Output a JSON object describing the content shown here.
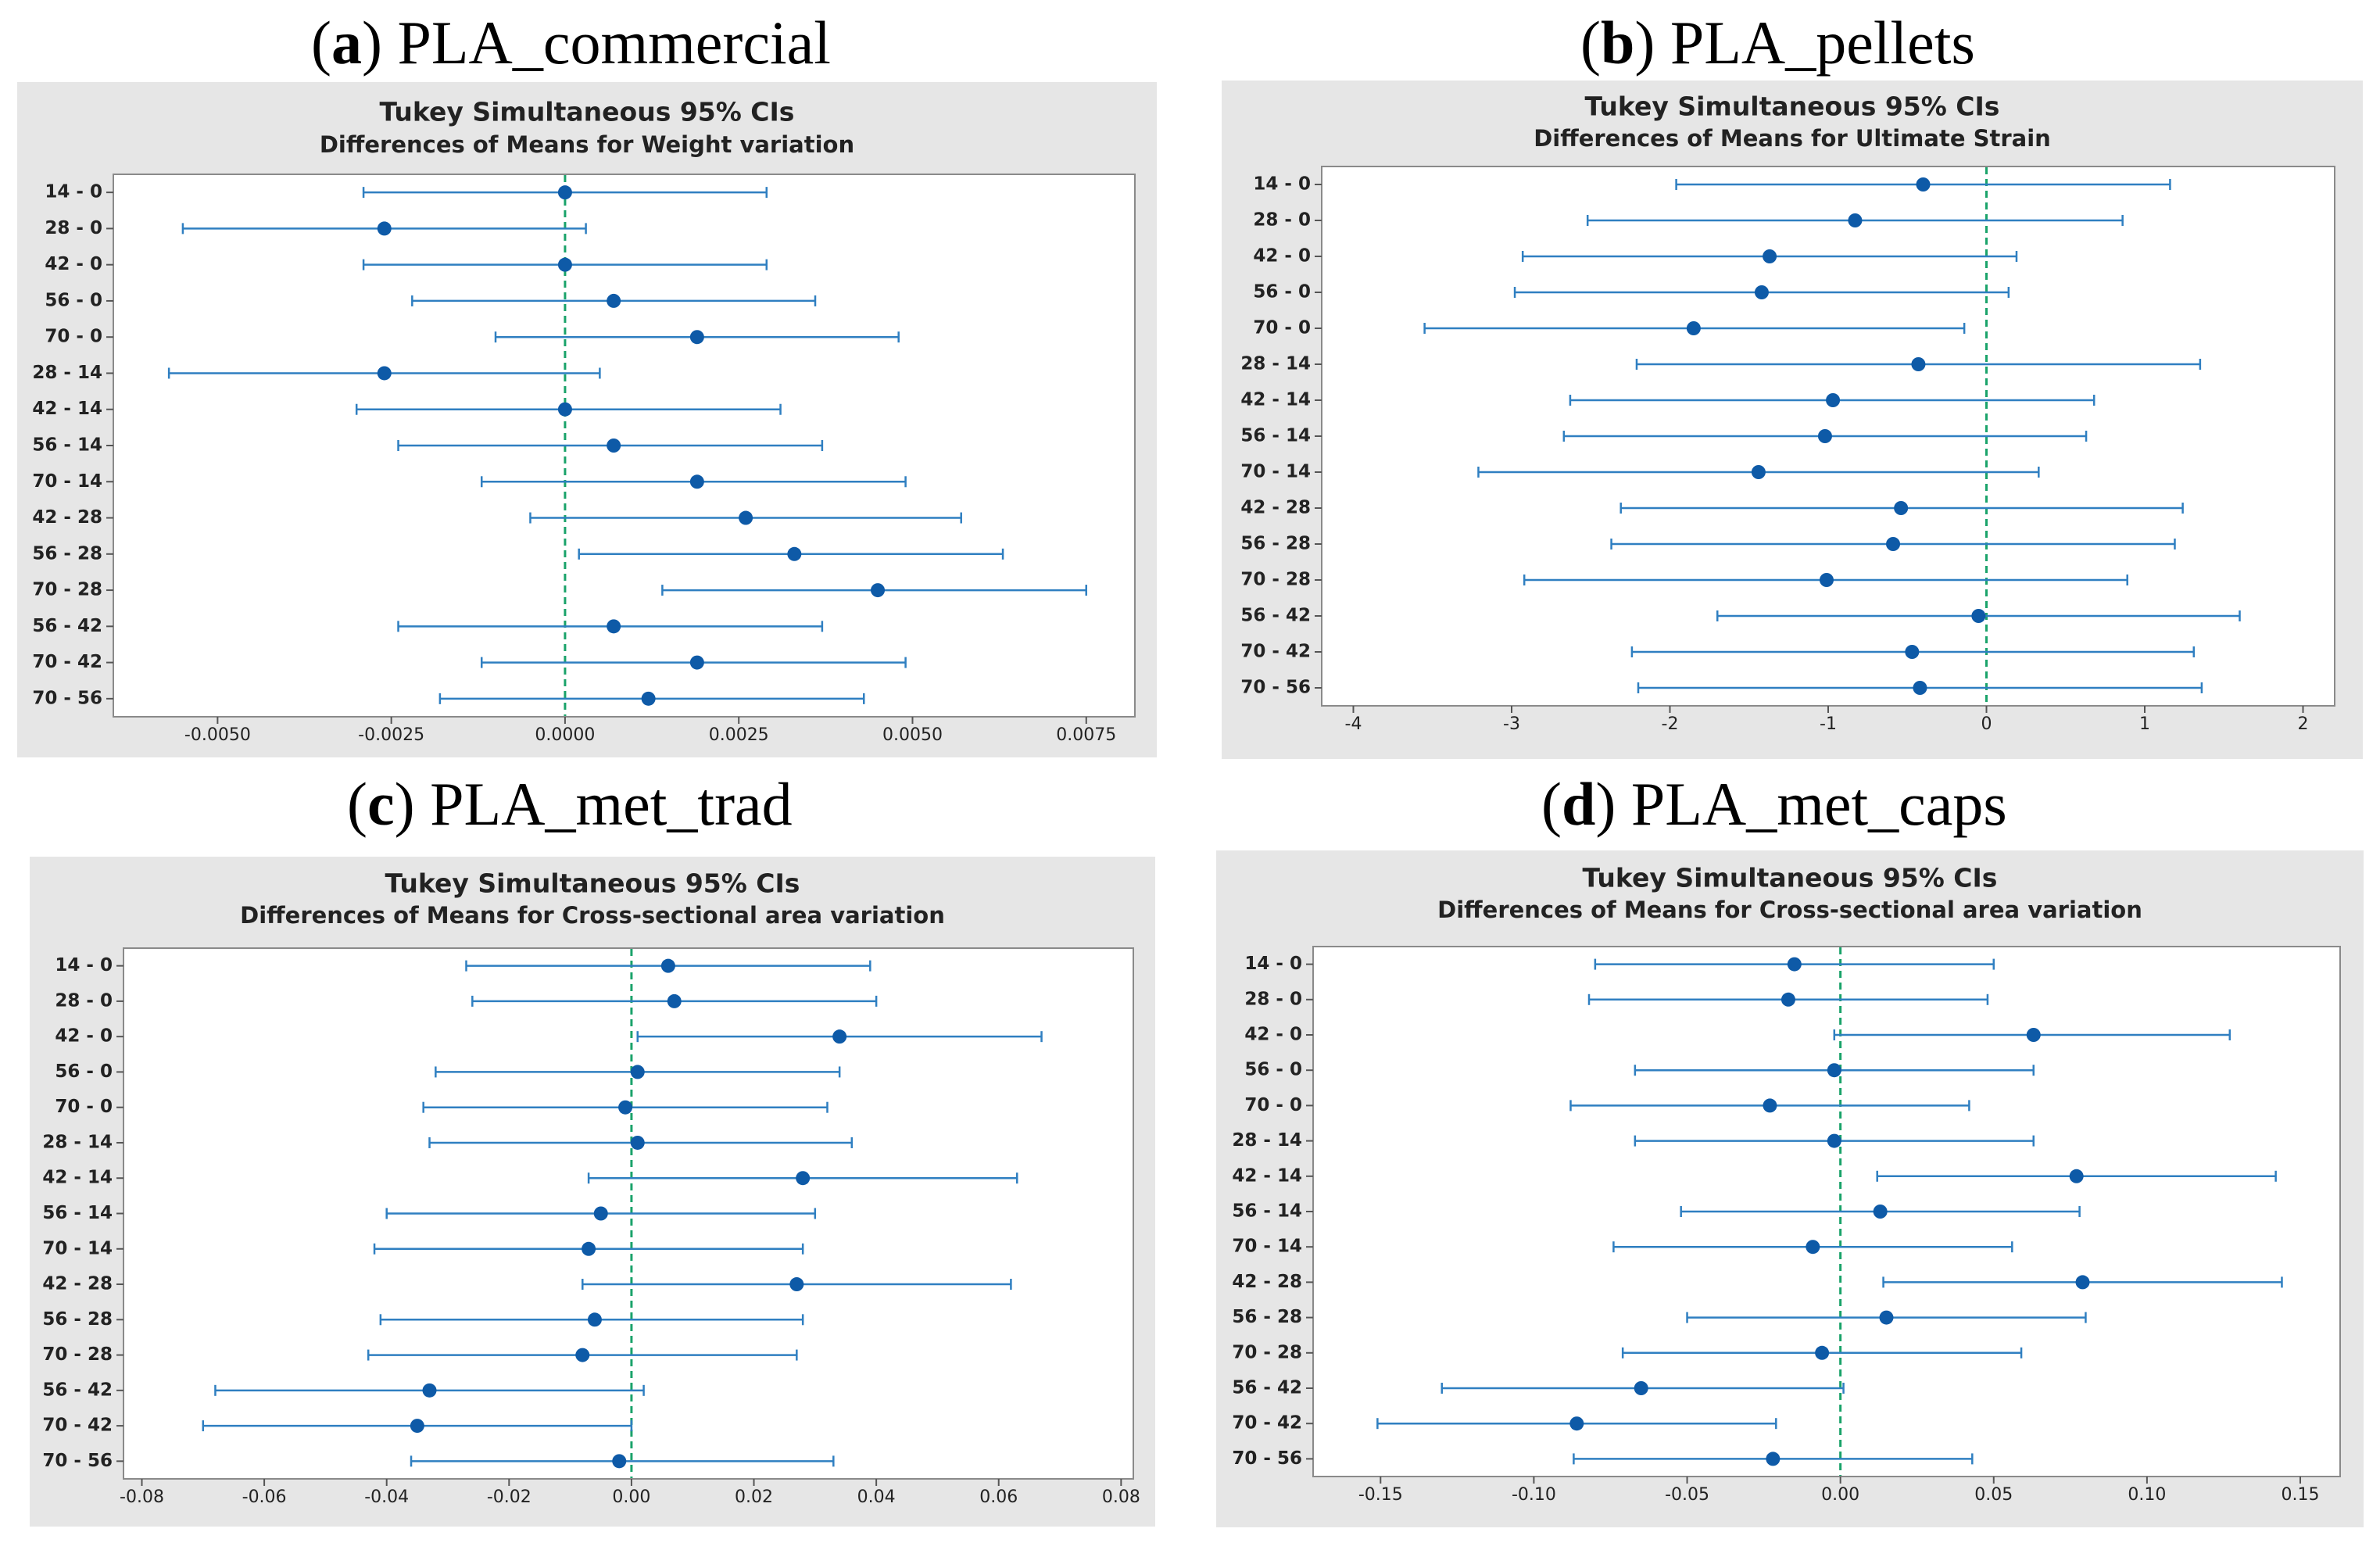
{
  "panels": [
    {
      "letter": "a",
      "open": "(",
      "close": ")",
      "name": "PLA_commercial"
    },
    {
      "letter": "b",
      "open": "(",
      "close": ")",
      "name": "PLA_pellets"
    },
    {
      "letter": "c",
      "open": "(",
      "close": ")",
      "name": "PLA_met_trad"
    },
    {
      "letter": "d",
      "open": "(",
      "close": ")",
      "name": "PLA_met_caps"
    }
  ],
  "chart_data": [
    {
      "type": "scatter",
      "title": "Tukey Simultaneous 95% CIs",
      "subtitle": "Differences of Means for Weight variation",
      "categories": [
        "14 - 0",
        "28 - 0",
        "42 - 0",
        "56 - 0",
        "70 - 0",
        "28 - 14",
        "42 - 14",
        "56 - 14",
        "70 - 14",
        "42 - 28",
        "56 - 28",
        "70 - 28",
        "56 - 42",
        "70 - 42",
        "70 - 56"
      ],
      "means": [
        0.0,
        -0.0026,
        0.0,
        0.0007,
        0.0019,
        -0.0026,
        0.0,
        0.0007,
        0.0019,
        0.0026,
        0.0033,
        0.0045,
        0.0007,
        0.0019,
        0.0012
      ],
      "lower": [
        -0.0029,
        -0.0055,
        -0.0029,
        -0.0022,
        -0.001,
        -0.0057,
        -0.003,
        -0.0024,
        -0.0012,
        -0.0005,
        0.0002,
        0.0014,
        -0.0024,
        -0.0012,
        -0.0018
      ],
      "upper": [
        0.0029,
        0.0003,
        0.0029,
        0.0036,
        0.0048,
        0.0005,
        0.0031,
        0.0037,
        0.0049,
        0.0057,
        0.0063,
        0.0075,
        0.0037,
        0.0049,
        0.0043
      ],
      "xlim": [
        -0.0065,
        0.0082
      ],
      "xticks": [
        -0.005,
        -0.0025,
        0,
        0.0025,
        0.005,
        0.0075
      ],
      "xtick_labels": [
        "-0.0050",
        "-0.0025",
        "0.0000",
        "0.0025",
        "0.0050",
        "0.0075"
      ],
      "reference_line": 0
    },
    {
      "type": "scatter",
      "title": "Tukey Simultaneous 95% CIs",
      "subtitle": "Differences of Means for Ultimate Strain",
      "categories": [
        "14 - 0",
        "28 - 0",
        "42 - 0",
        "56 - 0",
        "70 - 0",
        "28 - 14",
        "42 - 14",
        "56 - 14",
        "70 - 14",
        "42 - 28",
        "56 - 28",
        "70 - 28",
        "56 - 42",
        "70 - 42",
        "70 - 56"
      ],
      "means": [
        -0.4,
        -0.83,
        -1.37,
        -1.42,
        -1.85,
        -0.43,
        -0.97,
        -1.02,
        -1.44,
        -0.54,
        -0.59,
        -1.01,
        -0.05,
        -0.47,
        -0.42
      ],
      "lower": [
        -1.96,
        -2.52,
        -2.93,
        -2.98,
        -3.55,
        -2.21,
        -2.63,
        -2.67,
        -3.21,
        -2.31,
        -2.37,
        -2.92,
        -1.7,
        -2.24,
        -2.2
      ],
      "upper": [
        1.16,
        0.86,
        0.19,
        0.14,
        -0.14,
        1.35,
        0.68,
        0.63,
        0.33,
        1.24,
        1.19,
        0.89,
        1.6,
        1.31,
        1.36
      ],
      "xlim": [
        -4.2,
        2.2
      ],
      "xticks": [
        -4,
        -3,
        -2,
        -1,
        0,
        1,
        2
      ],
      "xtick_labels": [
        "-4",
        "-3",
        "-2",
        "-1",
        "0",
        "1",
        "2"
      ],
      "reference_line": 0
    },
    {
      "type": "scatter",
      "title": "Tukey Simultaneous 95% CIs",
      "subtitle": "Differences of Means for Cross-sectional area variation",
      "categories": [
        "14 - 0",
        "28 - 0",
        "42 - 0",
        "56 - 0",
        "70 - 0",
        "28 - 14",
        "42 - 14",
        "56 - 14",
        "70 - 14",
        "42 - 28",
        "56 - 28",
        "70 - 28",
        "56 - 42",
        "70 - 42",
        "70 - 56"
      ],
      "means": [
        0.006,
        0.007,
        0.034,
        0.001,
        -0.001,
        0.001,
        0.028,
        -0.005,
        -0.007,
        0.027,
        -0.006,
        -0.008,
        -0.033,
        -0.035,
        -0.002
      ],
      "lower": [
        -0.027,
        -0.026,
        0.001,
        -0.032,
        -0.034,
        -0.033,
        -0.007,
        -0.04,
        -0.042,
        -0.008,
        -0.041,
        -0.043,
        -0.068,
        -0.07,
        -0.036
      ],
      "upper": [
        0.039,
        0.04,
        0.067,
        0.034,
        0.032,
        0.036,
        0.063,
        0.03,
        0.028,
        0.062,
        0.028,
        0.027,
        0.002,
        0.0,
        0.033
      ],
      "xlim": [
        -0.083,
        0.082
      ],
      "xticks": [
        -0.08,
        -0.06,
        -0.04,
        -0.02,
        0,
        0.02,
        0.04,
        0.06,
        0.08
      ],
      "xtick_labels": [
        "-0.08",
        "-0.06",
        "-0.04",
        "-0.02",
        "0.00",
        "0.02",
        "0.04",
        "0.06",
        "0.08"
      ],
      "reference_line": 0
    },
    {
      "type": "scatter",
      "title": "Tukey Simultaneous 95% CIs",
      "subtitle": "Differences of Means for Cross-sectional area variation",
      "categories": [
        "14 - 0",
        "28 - 0",
        "42 - 0",
        "56 - 0",
        "70 - 0",
        "28 - 14",
        "42 - 14",
        "56 - 14",
        "70 - 14",
        "42 - 28",
        "56 - 28",
        "70 - 28",
        "56 - 42",
        "70 - 42",
        "70 - 56"
      ],
      "means": [
        -0.015,
        -0.017,
        0.063,
        -0.002,
        -0.023,
        -0.002,
        0.077,
        0.013,
        -0.009,
        0.079,
        0.015,
        -0.006,
        -0.065,
        -0.086,
        -0.022
      ],
      "lower": [
        -0.08,
        -0.082,
        -0.002,
        -0.067,
        -0.088,
        -0.067,
        0.012,
        -0.052,
        -0.074,
        0.014,
        -0.05,
        -0.071,
        -0.13,
        -0.151,
        -0.087
      ],
      "upper": [
        0.05,
        0.048,
        0.127,
        0.063,
        0.042,
        0.063,
        0.142,
        0.078,
        0.056,
        0.144,
        0.08,
        0.059,
        0.001,
        -0.021,
        0.043
      ],
      "xlim": [
        -0.172,
        0.163
      ],
      "xticks": [
        -0.15,
        -0.1,
        -0.05,
        0,
        0.05,
        0.1,
        0.15
      ],
      "xtick_labels": [
        "-0.15",
        "-0.10",
        "-0.05",
        "0.00",
        "0.05",
        "0.10",
        "0.15"
      ],
      "reference_line": 0
    }
  ]
}
